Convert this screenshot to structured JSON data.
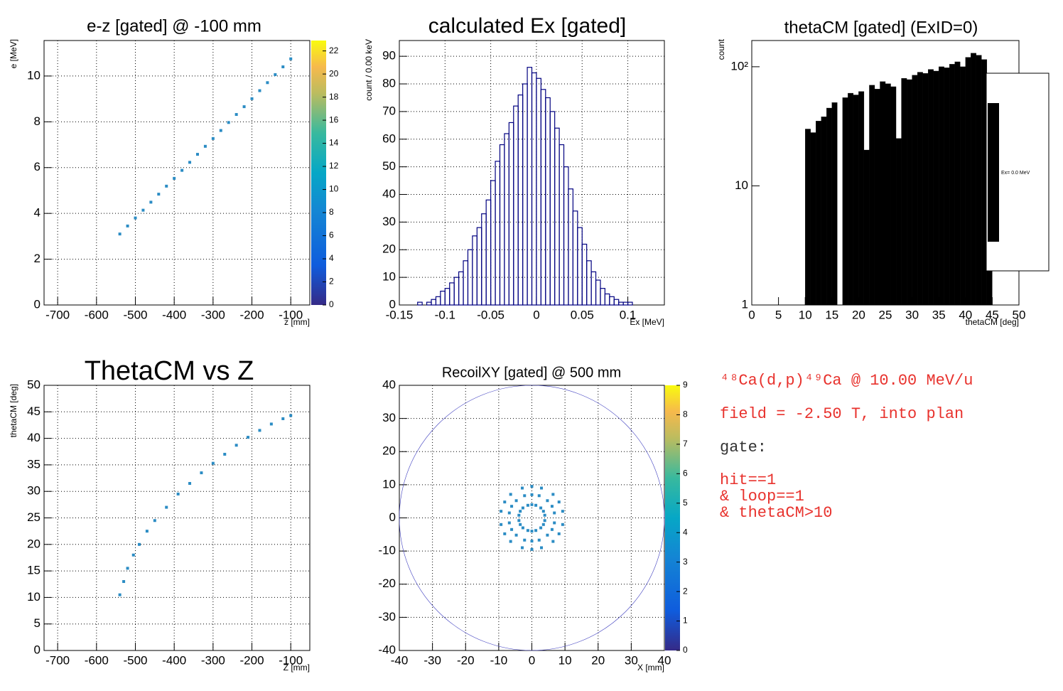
{
  "chart_data": [
    {
      "type": "scatter",
      "title": "e-z [gated] @  -100 mm",
      "x_label": "z [mm]",
      "y_label": "e [MeV]",
      "x": [
        -540,
        -520,
        -500,
        -480,
        -460,
        -440,
        -420,
        -400,
        -380,
        -360,
        -340,
        -320,
        -300,
        -280,
        -260,
        -240,
        -220,
        -200,
        -180,
        -160,
        -140,
        -120,
        -100
      ],
      "values": [
        3.1,
        3.45,
        3.8,
        4.14,
        4.49,
        4.84,
        5.19,
        5.53,
        5.88,
        6.23,
        6.58,
        6.93,
        7.27,
        7.62,
        7.97,
        8.32,
        8.66,
        9.01,
        9.36,
        9.71,
        10.06,
        10.4,
        10.75
      ],
      "color": "#2b8cc4",
      "xlim": [
        -735,
        -51
      ],
      "ylim": [
        0,
        11.55
      ],
      "xticks": [
        -700,
        -600,
        -500,
        -400,
        -300,
        -200,
        -100
      ],
      "yticks": [
        0,
        2,
        4,
        6,
        8,
        10
      ],
      "zlim": [
        0,
        22.9
      ],
      "zticks": [
        0,
        2,
        4,
        6,
        8,
        10,
        12,
        14,
        16,
        18,
        20,
        22
      ],
      "grid": true
    },
    {
      "type": "histogram",
      "title": "calculated Ex [gated]",
      "x_label": "Ex [MeV]",
      "y_label": "count / 0.00 keV",
      "bins": [
        -0.15,
        -0.145,
        -0.14,
        -0.135,
        -0.13,
        -0.125,
        -0.12,
        -0.115,
        -0.11,
        -0.105,
        -0.1,
        -0.095,
        -0.09,
        -0.085,
        -0.08,
        -0.075,
        -0.07,
        -0.065,
        -0.06,
        -0.055,
        -0.05,
        -0.045,
        -0.04,
        -0.035,
        -0.03,
        -0.025,
        -0.02,
        -0.015,
        -0.01,
        -0.005,
        0,
        0.005,
        0.01,
        0.015,
        0.02,
        0.025,
        0.03,
        0.035,
        0.04,
        0.045,
        0.05,
        0.055,
        0.06,
        0.065,
        0.07,
        0.075,
        0.08,
        0.085,
        0.09,
        0.095,
        0.1,
        0.105,
        0.11,
        0.115,
        0.12,
        0.125,
        0.13,
        0.135,
        0.14
      ],
      "values": [
        0,
        0,
        0,
        0,
        1,
        0,
        1,
        2,
        3,
        5,
        6,
        8,
        10,
        12,
        16,
        20,
        25,
        28,
        33,
        38,
        45,
        52,
        58,
        62,
        66,
        72,
        76,
        80,
        86,
        84,
        82,
        78,
        75,
        70,
        64,
        58,
        50,
        42,
        34,
        28,
        22,
        16,
        12,
        9,
        6,
        4,
        3,
        2,
        1,
        1,
        1,
        0,
        0,
        0,
        0,
        0,
        0,
        0
      ],
      "color": "#000080",
      "filled": false,
      "xlim": [
        -0.15,
        0.14
      ],
      "ylim": [
        0,
        95.7
      ],
      "xticks": [
        -0.15,
        -0.1,
        -0.05,
        0,
        0.05,
        0.1
      ],
      "yticks": [
        0,
        10,
        20,
        30,
        40,
        50,
        60,
        70,
        80,
        90
      ],
      "grid": true
    },
    {
      "type": "histogram",
      "title": "thetaCM [gated] (ExID=0)",
      "x_label": "thetaCM [deg]",
      "y_label": "count",
      "bins": [
        0,
        1,
        2,
        3,
        4,
        5,
        6,
        7,
        8,
        9,
        10,
        11,
        12,
        13,
        14,
        15,
        16,
        17,
        18,
        19,
        20,
        21,
        22,
        23,
        24,
        25,
        26,
        27,
        28,
        29,
        30,
        31,
        32,
        33,
        34,
        35,
        36,
        37,
        38,
        39,
        40,
        41,
        42,
        43,
        44,
        45
      ],
      "series": [
        {
          "name": "Ex=  0.0 MeV",
          "color": "#000000",
          "values": [
            0,
            0,
            0,
            0,
            0,
            0,
            0,
            0,
            0,
            0,
            30,
            28,
            35,
            38,
            45,
            50,
            0,
            55,
            60,
            58,
            62,
            20,
            70,
            65,
            75,
            72,
            68,
            25,
            80,
            78,
            85,
            90,
            88,
            95,
            92,
            100,
            98,
            105,
            110,
            100,
            120,
            130,
            125,
            115,
            70
          ]
        }
      ],
      "filled": true,
      "log_y": true,
      "legend": "right",
      "xlim": [
        0,
        50
      ],
      "ylim": [
        1,
        166
      ],
      "xticks": [
        0,
        5,
        10,
        15,
        20,
        25,
        30,
        35,
        40,
        45,
        50
      ],
      "yticks": [
        1,
        10,
        {
          "value": 100,
          "label": "10²"
        }
      ],
      "grid": false
    },
    {
      "type": "scatter",
      "title": "ThetaCM vs Z",
      "x_label": "Z [mm]",
      "y_label": "thetaCM [deg]",
      "x": [
        -540,
        -530,
        -520,
        -505,
        -490,
        -470,
        -450,
        -420,
        -390,
        -360,
        -330,
        -300,
        -270,
        -240,
        -210,
        -180,
        -150,
        -120,
        -100
      ],
      "values": [
        10.5,
        13,
        15.5,
        18,
        20,
        22.5,
        24.5,
        27,
        29.5,
        31.5,
        33.5,
        35.3,
        37,
        38.7,
        40.2,
        41.5,
        42.7,
        43.7,
        44.3
      ],
      "color": "#2b8cc4",
      "xlim": [
        -735,
        -51
      ],
      "ylim": [
        0,
        50
      ],
      "xticks": [
        -700,
        -600,
        -500,
        -400,
        -300,
        -200,
        -100
      ],
      "yticks": [
        0,
        5,
        10,
        15,
        20,
        25,
        30,
        35,
        40,
        45,
        50
      ],
      "grid": true
    },
    {
      "type": "scatter",
      "title": "RecoilXY [gated] @  500 mm",
      "x_label": "X [mm]",
      "x": [
        3.9,
        6.8,
        9.3,
        3.5,
        6.1,
        8.2,
        2.7,
        4.7,
        6.4,
        1.2,
        2.2,
        2.9,
        0,
        0,
        0,
        -1.2,
        -2.2,
        -2.9,
        -2.7,
        -4.7,
        -6.4,
        -3.5,
        -6.1,
        -8.2,
        -3.9,
        -6.8,
        -9.3,
        3.9,
        6.8,
        9.3,
        3.5,
        6.1,
        8.2,
        2.7,
        4.7,
        6.4,
        1.2,
        2.2,
        2.9,
        0,
        0,
        0,
        -1.2,
        -2.2,
        -2.9,
        -2.7,
        -4.7,
        -6.4,
        -3.5,
        -6.1,
        -8.2,
        -3.9,
        -6.8,
        -9.3
      ],
      "values": [
        0.8,
        1.5,
        2,
        2,
        3.5,
        4.8,
        3,
        5.2,
        7.1,
        3.8,
        6.7,
        9,
        4,
        7,
        9.5,
        3.8,
        6.7,
        9,
        3,
        5.2,
        7.1,
        2,
        3.5,
        4.8,
        0.8,
        1.5,
        2,
        -0.8,
        -1.5,
        -2,
        -2,
        -3.5,
        -4.8,
        -3,
        -5.2,
        -7.1,
        -3.8,
        -6.7,
        -9,
        -4,
        -7,
        -9.5,
        -3.8,
        -6.7,
        -9,
        -3,
        -5.2,
        -7.1,
        -2,
        -3.5,
        -4.8,
        -0.8,
        -1.5,
        -2
      ],
      "color": "#2b8cc4",
      "xlim": [
        -40,
        40
      ],
      "ylim": [
        -40,
        40
      ],
      "xticks": [
        -40,
        -30,
        -20,
        -10,
        0,
        10,
        20,
        30,
        40
      ],
      "yticks": [
        -40,
        -30,
        -20,
        -10,
        0,
        10,
        20,
        30,
        40
      ],
      "zlim": [
        0,
        9
      ],
      "zticks": [
        0,
        1,
        2,
        3,
        4,
        5,
        6,
        7,
        8,
        9
      ],
      "grid": true
    }
  ],
  "text_panel": {
    "reaction": "⁴⁸Ca(d,p)⁴⁹Ca @ 10.00 MeV/u",
    "field": "field = -2.50 T, into plan",
    "gate_label": "gate:",
    "gates": [
      "hit==1",
      "& loop==1",
      "& thetaCM>10"
    ]
  }
}
